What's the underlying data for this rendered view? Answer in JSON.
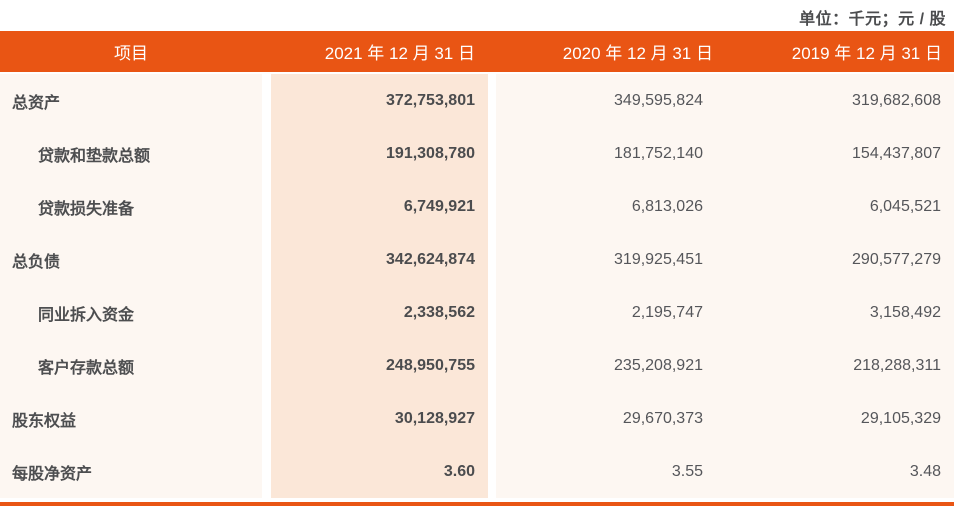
{
  "unit_label": "单位：千元；元 / 股",
  "colors": {
    "accent_orange": "#E95514",
    "highlight_column_bg": "#FBE7D8",
    "body_column_bg": "#FDF7F2",
    "header_text": "#FFFFFF",
    "body_text": "#4E5052"
  },
  "table": {
    "columns": {
      "item": "项目",
      "date_2021": "2021 年 12 月 31 日",
      "date_2020": "2020 年 12 月 31 日",
      "date_2019": "2019 年 12 月 31 日"
    },
    "rows": [
      {
        "label": "总资产",
        "indent": false,
        "values": [
          "372,753,801",
          "349,595,824",
          "319,682,608"
        ]
      },
      {
        "label": "贷款和垫款总额",
        "indent": true,
        "values": [
          "191,308,780",
          "181,752,140",
          "154,437,807"
        ]
      },
      {
        "label": "贷款损失准备",
        "indent": true,
        "values": [
          "6,749,921",
          "6,813,026",
          "6,045,521"
        ]
      },
      {
        "label": "总负债",
        "indent": false,
        "values": [
          "342,624,874",
          "319,925,451",
          "290,577,279"
        ]
      },
      {
        "label": "同业拆入资金",
        "indent": true,
        "values": [
          "2,338,562",
          "2,195,747",
          "3,158,492"
        ]
      },
      {
        "label": "客户存款总额",
        "indent": true,
        "values": [
          "248,950,755",
          "235,208,921",
          "218,288,311"
        ]
      },
      {
        "label": "股东权益",
        "indent": false,
        "values": [
          "30,128,927",
          "29,670,373",
          "29,105,329"
        ]
      },
      {
        "label": "每股净资产",
        "indent": false,
        "values": [
          "3.60",
          "3.55",
          "3.48"
        ]
      }
    ]
  }
}
